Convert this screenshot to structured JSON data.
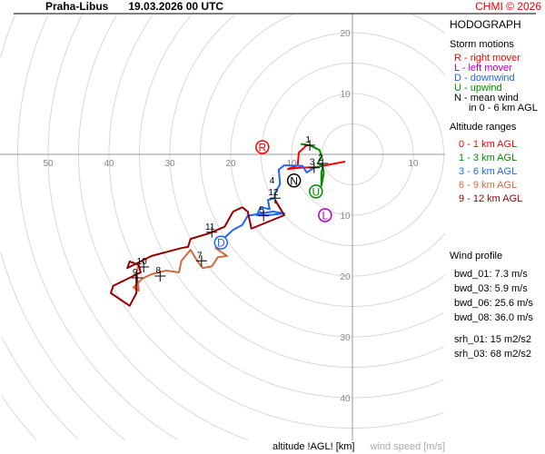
{
  "header": {
    "station": "Praha-Libus",
    "datetime": "19.03.2026 00 UTC",
    "copyright": "CHMI © 2026"
  },
  "legend": {
    "title": "HODOGRAPH",
    "storm_motions_title": "Storm motions",
    "storm_motions": [
      {
        "label": "R - right mover",
        "color": "#ff0000"
      },
      {
        "label": "L - left mover",
        "color": "#b000c0"
      },
      {
        "label": "D - downwind",
        "color": "#1e64ff"
      },
      {
        "label": "U - upwind",
        "color": "#008c00"
      },
      {
        "label": "N - mean wind",
        "color": "#000000"
      },
      {
        "label": "in 0 - 6 km AGL",
        "color": "#000000"
      }
    ],
    "altitude_title": "Altitude ranges",
    "altitude_ranges": [
      {
        "label": "0 - 1 km AGL",
        "color": "#ff0000"
      },
      {
        "label": "1 - 3 km AGL",
        "color": "#008c00"
      },
      {
        "label": "3 - 6 km AGL",
        "color": "#1e64ff"
      },
      {
        "label": "6 - 9 km AGL",
        "color": "#d2693c"
      },
      {
        "label": "9 - 12 km AGL",
        "color": "#960000"
      }
    ],
    "wind_profile_title": "Wind profile",
    "wind_profile": [
      "bwd_01: 7.3 m/s",
      "bwd_03: 5.9 m/s",
      "bwd_06: 25.6 m/s",
      "bwd_08: 36.0 m/s"
    ],
    "helicity": [
      "srh_01: 15 m2/s2",
      "srh_03: 68 m2/s2"
    ]
  },
  "footer": {
    "altitude_label": "altitude !AGL! [km]",
    "speed_label": "wind speed [m/s]"
  },
  "chart_data": {
    "type": "line",
    "title": "HODOGRAPH",
    "units": "m/s",
    "ring_step": 5,
    "ring_labels": {
      "left": [
        10,
        20,
        30,
        40,
        50
      ],
      "top": [
        10,
        20
      ],
      "right": [
        10
      ],
      "bottom": [
        10,
        20,
        30,
        40
      ]
    },
    "series": [
      {
        "name": "0 - 1 km AGL",
        "color": "#ff0000",
        "uv": [
          [
            -1.2,
            -1.2
          ],
          [
            -3.4,
            -1.6
          ],
          [
            -6.0,
            -2.1
          ],
          [
            -8.7,
            -2.2
          ],
          [
            -10.6,
            -2.4
          ],
          [
            -9.0,
            -1.8
          ],
          [
            -8.8,
            0.3
          ],
          [
            -7.5,
            1.5
          ],
          [
            -7.0,
            1.5
          ]
        ]
      },
      {
        "name": "1 - 3 km AGL",
        "color": "#008c00",
        "uv": [
          [
            -8.5,
            1.7
          ],
          [
            -7.0,
            1.5
          ],
          [
            -5.4,
            0.7
          ],
          [
            -5.1,
            -0.3
          ],
          [
            -5.7,
            -1.5
          ],
          [
            -4.8,
            -1.8
          ],
          [
            -5.1,
            -3.0
          ],
          [
            -5.1,
            -5.2
          ],
          [
            -4.7,
            -3.0
          ],
          [
            -4.9,
            -1.9
          ],
          [
            -6.3,
            -2.2
          ]
        ]
      },
      {
        "name": "3 - 6 km AGL",
        "color": "#1e64ff",
        "uv": [
          [
            -6.3,
            -2.2
          ],
          [
            -7.5,
            -3.0
          ],
          [
            -8.2,
            -1.9
          ],
          [
            -11.2,
            -1.8
          ],
          [
            -12.1,
            -2.5
          ],
          [
            -11.9,
            -4.9
          ],
          [
            -12.7,
            -6.3
          ],
          [
            -12.8,
            -7.2
          ],
          [
            -13.9,
            -7.5
          ],
          [
            -13.6,
            -9.0
          ],
          [
            -15.1,
            -8.7
          ],
          [
            -15.7,
            -10.0
          ],
          [
            -13.9,
            -10.0
          ],
          [
            -11.2,
            -9.7
          ],
          [
            -13.1,
            -9.4
          ],
          [
            -17.2,
            -10.1
          ],
          [
            -18.1,
            -11.6
          ],
          [
            -19.6,
            -12.4
          ],
          [
            -21.0,
            -13.7
          ]
        ]
      },
      {
        "name": "6 - 9 km AGL",
        "color": "#d2693c",
        "uv": [
          [
            -21.0,
            -13.7
          ],
          [
            -22.5,
            -15.4
          ],
          [
            -20.6,
            -16.7
          ],
          [
            -22.1,
            -16.9
          ],
          [
            -23.1,
            -18.4
          ],
          [
            -24.6,
            -18.7
          ],
          [
            -25.5,
            -17.5
          ],
          [
            -26.6,
            -15.7
          ],
          [
            -28.1,
            -17.5
          ],
          [
            -28.5,
            -19.4
          ],
          [
            -30.6,
            -19.1
          ],
          [
            -33.0,
            -19.7
          ],
          [
            -34.5,
            -20.4
          ],
          [
            -36.0,
            -21.9
          ],
          [
            -35.1,
            -22.4
          ],
          [
            -35.5,
            -19.4
          ],
          [
            -35.1,
            -18.2
          ]
        ]
      },
      {
        "name": "9 - 12 km AGL",
        "color": "#960000",
        "uv": [
          [
            -12.7,
            -7.5
          ],
          [
            -11.2,
            -10.0
          ],
          [
            -16.6,
            -12.2
          ],
          [
            -17.2,
            -9.4
          ],
          [
            -18.1,
            -8.7
          ],
          [
            -19.6,
            -9.4
          ],
          [
            -21.0,
            -11.9
          ],
          [
            -23.6,
            -13.0
          ],
          [
            -26.6,
            -13.9
          ],
          [
            -27.0,
            -15.2
          ],
          [
            -28.1,
            -15.4
          ],
          [
            -33.0,
            -16.7
          ],
          [
            -37.0,
            -18.7
          ],
          [
            -36.6,
            -17.6
          ],
          [
            -35.1,
            -18.2
          ],
          [
            -34.8,
            -19.4
          ],
          [
            -39.3,
            -21.6
          ],
          [
            -39.7,
            -22.8
          ],
          [
            -36.6,
            -24.9
          ],
          [
            -35.5,
            -22.8
          ],
          [
            -35.5,
            -19.4
          ]
        ]
      }
    ],
    "altitude_markers": [
      {
        "label": "1",
        "uv": [
          -7.0,
          1.5
        ]
      },
      {
        "label": "2",
        "uv": [
          -4.9,
          -1.5
        ]
      },
      {
        "label": "3",
        "uv": [
          -6.3,
          -2.2
        ]
      },
      {
        "label": "4",
        "uv": [
          -12.9,
          -5.2
        ]
      },
      {
        "label": "5",
        "uv": [
          -14.6,
          -10.1
        ]
      },
      {
        "label": "7",
        "uv": [
          -24.8,
          -17.5
        ]
      },
      {
        "label": "8",
        "uv": [
          -31.6,
          -20.0
        ]
      },
      {
        "label": "9",
        "uv": [
          -35.4,
          -20.3
        ]
      },
      {
        "label": "10",
        "uv": [
          -34.3,
          -18.5
        ]
      },
      {
        "label": "11",
        "uv": [
          -23.1,
          -12.8
        ]
      },
      {
        "label": "12",
        "uv": [
          -12.7,
          -7.2
        ]
      }
    ],
    "storm_motions": [
      {
        "label": "R",
        "color": "#ff0000",
        "uv": [
          -14.8,
          1.2
        ]
      },
      {
        "label": "L",
        "color": "#b000c0",
        "uv": [
          -4.5,
          -10.0
        ]
      },
      {
        "label": "D",
        "color": "#1e64ff",
        "uv": [
          -21.6,
          -14.5
        ]
      },
      {
        "label": "U",
        "color": "#008c00",
        "uv": [
          -6.0,
          -6.1
        ]
      },
      {
        "label": "N",
        "color": "#000000",
        "uv": [
          -9.6,
          -4.3
        ]
      }
    ]
  }
}
